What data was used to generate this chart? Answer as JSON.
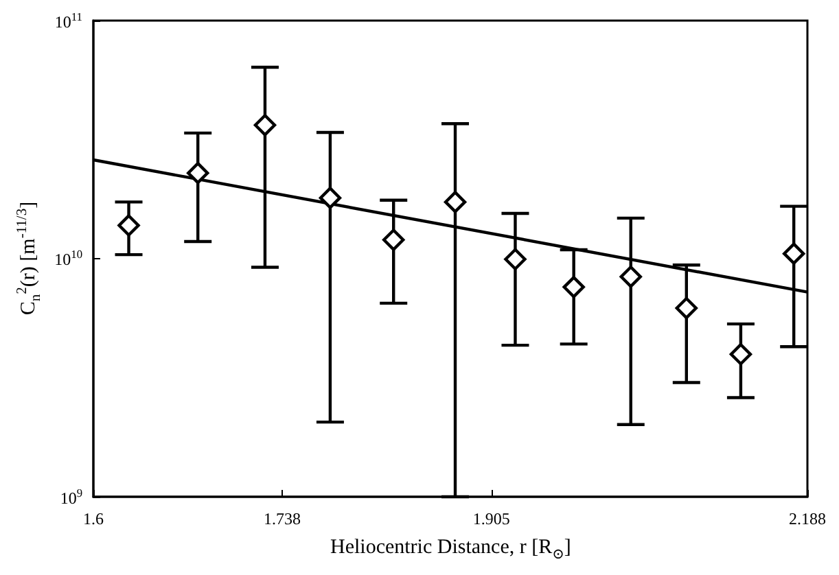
{
  "chart_data": {
    "type": "scatter",
    "xlabel": "Heliocentric Distance, r [R$_{⊙}$]",
    "ylabel": "C$_{n}$$^{2}$(r) [m$^{-11/3}$]",
    "log": "xy",
    "xlim": [
      1.6,
      2.188
    ],
    "xticks": [
      1.6,
      1.738,
      1.905,
      2.188
    ],
    "ylim": [
      1000000000,
      100000000000
    ],
    "yticks": [
      {
        "value": 1000000000,
        "label": "10$^{9}$"
      },
      {
        "value": 10000000000,
        "label": "10$^{10}$"
      },
      {
        "value": 100000000000,
        "label": "10$^{11}$"
      }
    ],
    "grid": false,
    "marker": "diamond",
    "series": [
      {
        "color": "#000000",
        "x": [
          1.625,
          1.675,
          1.725,
          1.775,
          1.825,
          1.875,
          1.925,
          1.975,
          2.025,
          2.075,
          2.125,
          2.175
        ],
        "values": [
          13800000000,
          22900000000,
          36400000000,
          18000000000,
          12000000000,
          17300000000,
          9950000000,
          7600000000,
          8400000000,
          6200000000,
          3970000000,
          10500000000
        ],
        "errors": [
          [
            10400000000,
            17300000000
          ],
          [
            11800000000,
            33700000000
          ],
          [
            9200000000,
            63700000000
          ],
          [
            2060000000,
            33900000000
          ],
          [
            6500000000,
            17600000000
          ],
          [
            1000000000,
            36900000000
          ],
          [
            4330000000,
            15500000000
          ],
          [
            4380000000,
            10900000000
          ],
          [
            2010000000,
            14800000000
          ],
          [
            3020000000,
            9400000000
          ],
          [
            2610000000,
            5320000000
          ],
          [
            4270000000,
            16600000000
          ]
        ]
      },
      {
        "type": "line",
        "color": "#000000",
        "x": [
          1.6,
          2.188
        ],
        "values": [
          26000000000,
          7240000000
        ],
        "marker": "none",
        "line_style": "solid"
      }
    ]
  }
}
